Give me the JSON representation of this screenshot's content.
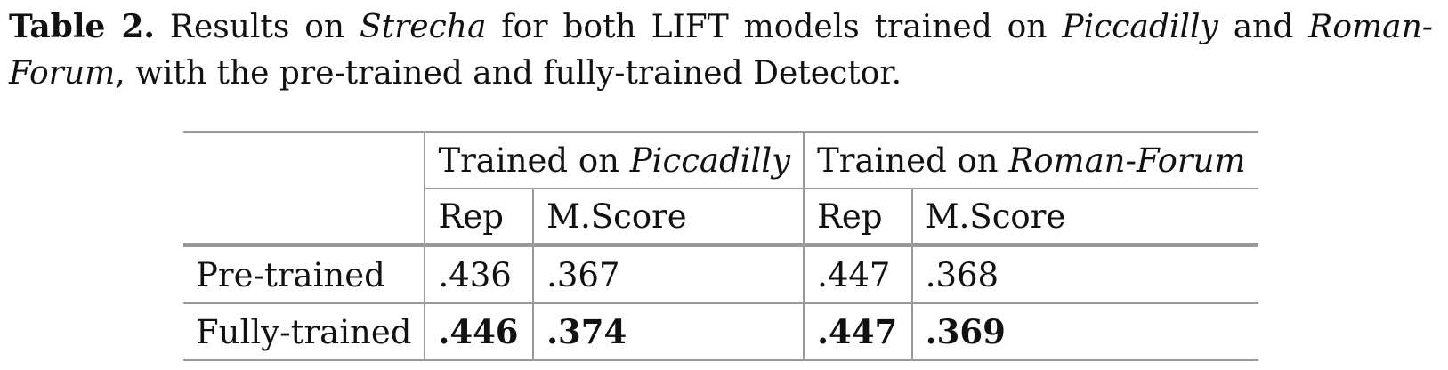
{
  "caption": {
    "label": "Table 2.",
    "text_1": " Results on ",
    "dataset": "Strecha",
    "text_2": " for both LIFT models trained on ",
    "train_a": "Piccadilly",
    "text_3": " and ",
    "train_b": "Roman-Forum",
    "text_4": ", with the pre-trained and fully-trained Detector."
  },
  "table": {
    "groups": [
      {
        "prefix": "Trained on ",
        "name": "Piccadilly"
      },
      {
        "prefix": "Trained on ",
        "name": "Roman-Forum"
      }
    ],
    "subheaders": [
      "Rep",
      "M.Score",
      "Rep",
      "M.Score"
    ],
    "rows": [
      {
        "label": "Pre-trained",
        "values": [
          ".436",
          ".367",
          ".447",
          ".368"
        ]
      },
      {
        "label": "Fully-trained",
        "values": [
          ".446",
          ".374",
          ".447",
          ".369"
        ]
      }
    ]
  }
}
